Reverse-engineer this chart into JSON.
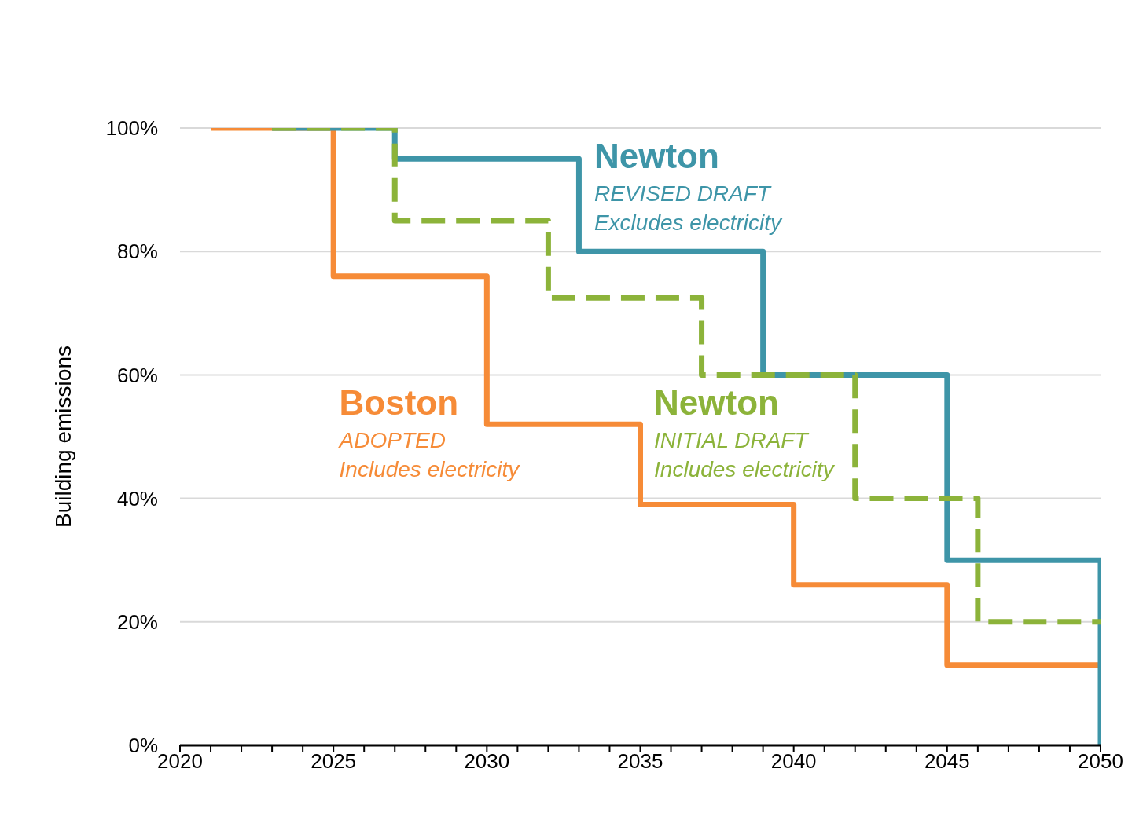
{
  "chart_data": {
    "type": "step",
    "ylabel": "Building emissions",
    "xlim": [
      2020,
      2050
    ],
    "xticks": [
      2020,
      {
        "value": 2021,
        "label": null
      },
      {
        "value": 2022,
        "label": null
      },
      {
        "value": 2023,
        "label": null
      },
      {
        "value": 2024,
        "label": null
      },
      2025,
      {
        "value": 2026,
        "label": null
      },
      {
        "value": 2027,
        "label": null
      },
      {
        "value": 2028,
        "label": null
      },
      {
        "value": 2029,
        "label": null
      },
      2030,
      {
        "value": 2031,
        "label": null
      },
      {
        "value": 2032,
        "label": null
      },
      {
        "value": 2033,
        "label": null
      },
      {
        "value": 2034,
        "label": null
      },
      2035,
      {
        "value": 2036,
        "label": null
      },
      {
        "value": 2037,
        "label": null
      },
      {
        "value": 2038,
        "label": null
      },
      {
        "value": 2039,
        "label": null
      },
      2040,
      {
        "value": 2041,
        "label": null
      },
      {
        "value": 2042,
        "label": null
      },
      {
        "value": 2043,
        "label": null
      },
      {
        "value": 2044,
        "label": null
      },
      2045,
      {
        "value": 2046,
        "label": null
      },
      {
        "value": 2047,
        "label": null
      },
      {
        "value": 2048,
        "label": null
      },
      {
        "value": 2049,
        "label": null
      },
      2050
    ],
    "ylim": [
      0,
      100
    ],
    "yticks": [
      {
        "value": 0,
        "label": "0%"
      },
      {
        "value": 20,
        "label": "20%"
      },
      {
        "value": 40,
        "label": "40%"
      },
      {
        "value": 60,
        "label": "60%"
      },
      {
        "value": 80,
        "label": "80%"
      },
      {
        "value": 100,
        "label": "100%"
      }
    ],
    "grid": "y",
    "series": [
      {
        "name": "Boston",
        "color": "#f68b37",
        "line_style": "solid",
        "x": [
          2021,
          2025,
          2030,
          2035,
          2040,
          2045,
          2050
        ],
        "values": [
          100,
          76,
          52,
          39,
          26,
          13,
          13
        ]
      },
      {
        "name": "Newton",
        "color": "#3e95a8",
        "line_style": "solid",
        "x": [
          2023,
          2027,
          2033,
          2039,
          2045,
          2050
        ],
        "values": [
          100,
          95,
          80,
          60,
          30,
          0
        ]
      },
      {
        "name": "Newton",
        "color": "#8cb33a",
        "line_style": "dashed",
        "x": [
          2023,
          2027,
          2032,
          2037,
          2042,
          2046,
          2050
        ],
        "values": [
          100,
          85,
          72.5,
          60,
          40,
          20,
          20
        ]
      }
    ],
    "annotations": [
      "ADOPTED",
      "Includes electricity",
      "REVISED DRAFT",
      "Excludes electricity",
      "INITIAL DRAFT",
      "Includes electricity"
    ]
  }
}
